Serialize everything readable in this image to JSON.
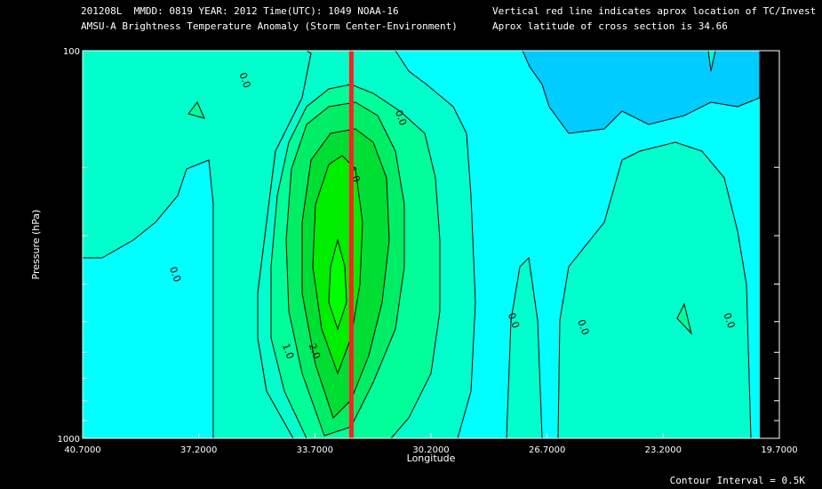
{
  "header": {
    "line1_left": "201208L  MMDD: 0819 YEAR: 2012 Time(UTC): 1049 NOAA-16",
    "line2_left": "AMSU-A Brightness Temperature Anomaly (Storm Center-Environment)",
    "line1_right": "Vertical red line indicates aprox location of TC/Invest",
    "line2_right": "Aprox latitude of cross section is 34.66"
  },
  "footer": {
    "contour_interval": "Contour Interval = 0.5K"
  },
  "colors": {
    "background": "#000000",
    "fill_neg1": "#00ccff",
    "fill_neg05": "#00ffff",
    "fill_0": "#00ffcc",
    "fill_05": "#00ff99",
    "fill_1": "#00ee66",
    "fill_15": "#00dd33",
    "fill_2": "#00ee00",
    "tc_line": "#ff2020"
  },
  "chart_data": {
    "type": "contour",
    "title": "AMSU-A Brightness Temperature Anomaly (Storm Center-Environment)",
    "xlabel": "Longitude",
    "ylabel": "Pressure (hPa)",
    "x_range": [
      40.7,
      19.7
    ],
    "y_range": [
      1000,
      100
    ],
    "y_scale": "log",
    "x_ticks": [
      "40.7000",
      "37.2000",
      "33.7000",
      "30.2000",
      "26.7000",
      "23.2000",
      "19.7000"
    ],
    "y_ticks": [
      "100",
      "1000"
    ],
    "contour_interval_K": 0.5,
    "tc_longitude": 32.6,
    "contour_labels": [
      {
        "text": "0.0",
        "lon": 35.9,
        "p": 120
      },
      {
        "text": "0.0",
        "lon": 31.2,
        "p": 150
      },
      {
        "text": "1.0",
        "lon": 32.6,
        "p": 210
      },
      {
        "text": "0.0",
        "lon": 38.0,
        "p": 380
      },
      {
        "text": "0.0",
        "lon": 27.8,
        "p": 500
      },
      {
        "text": "0.0",
        "lon": 25.7,
        "p": 520
      },
      {
        "text": "0.0",
        "lon": 21.3,
        "p": 500
      },
      {
        "text": "1.0",
        "lon": 34.6,
        "p": 600
      },
      {
        "text": "2.0",
        "lon": 33.8,
        "p": 600
      }
    ],
    "max_anomaly_region": {
      "lon": 33.8,
      "p": 580,
      "value": 2.0
    }
  }
}
